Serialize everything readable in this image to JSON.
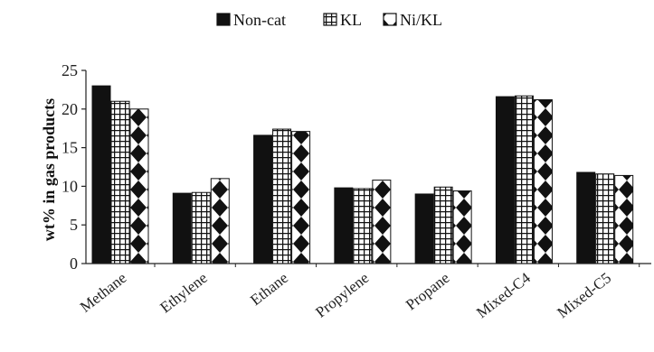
{
  "chart_data": {
    "type": "bar",
    "title": "",
    "xlabel": "",
    "ylabel": "wt% in gas products",
    "ylim": [
      0,
      25
    ],
    "yticks": [
      0,
      5,
      10,
      15,
      20,
      25
    ],
    "grid": false,
    "legend_position": "top-center",
    "categories": [
      "Methane",
      "Ethylene",
      "Ethane",
      "Propylene",
      "Propane",
      "Mixed-C4",
      "Mixed-C5"
    ],
    "series": [
      {
        "name": "Non-cat",
        "pattern": "solid",
        "color": "#111111",
        "values": [
          23.0,
          9.1,
          16.6,
          9.8,
          9.0,
          21.6,
          11.8
        ]
      },
      {
        "name": "KL",
        "pattern": "grid",
        "color": "#111111",
        "values": [
          21.0,
          9.2,
          17.4,
          9.7,
          9.9,
          21.7,
          11.6
        ]
      },
      {
        "name": "Ni/KL",
        "pattern": "diamond",
        "color": "#111111",
        "values": [
          20.0,
          11.0,
          17.1,
          10.8,
          9.4,
          21.2,
          11.4
        ]
      }
    ]
  }
}
